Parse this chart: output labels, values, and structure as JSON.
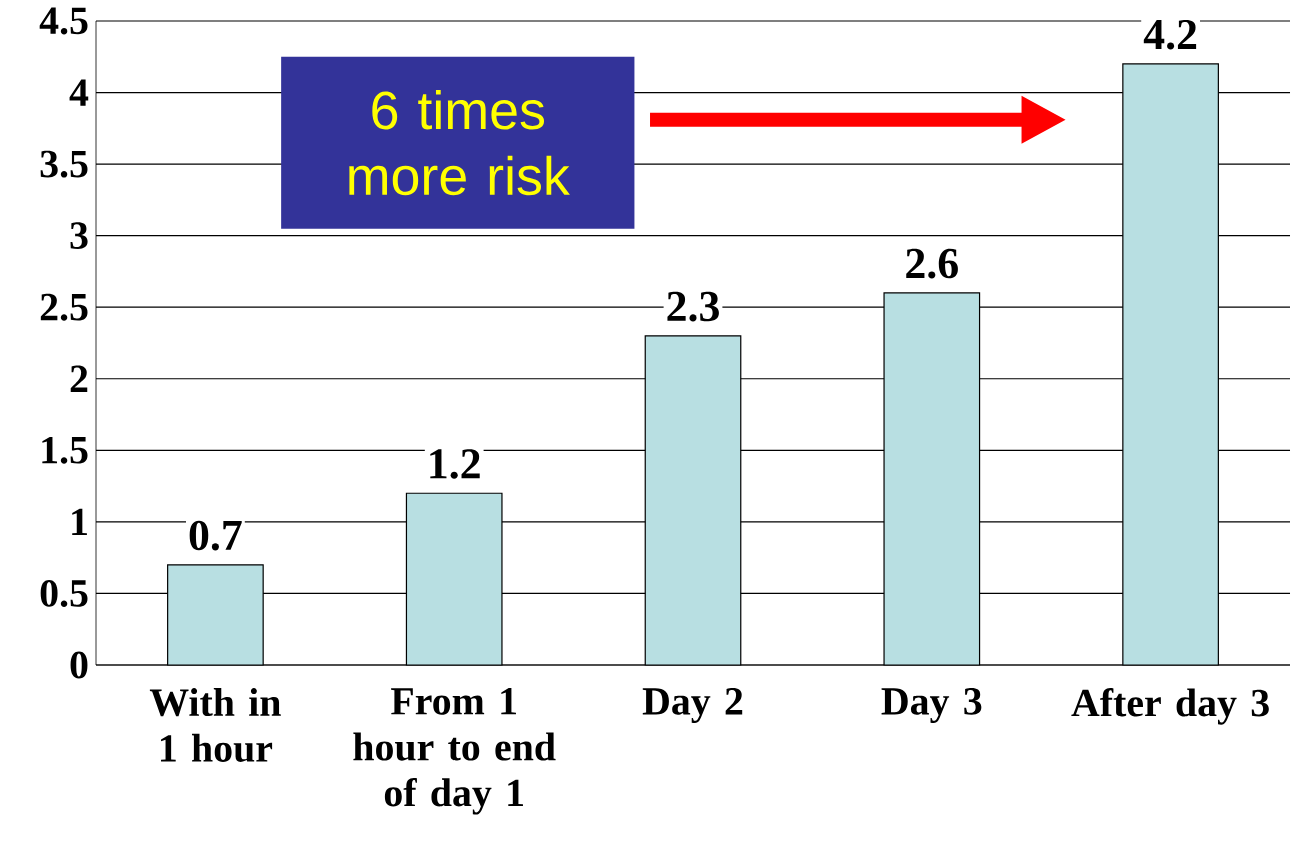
{
  "chart_data": {
    "type": "bar",
    "categories": [
      "With in 1 hour",
      "From 1 hour to end of day 1",
      "Day 2",
      "Day 3",
      "After day 3"
    ],
    "values": [
      0.7,
      1.2,
      2.3,
      2.6,
      4.2
    ],
    "color": "#b8dfe2",
    "ylim": [
      0,
      4.5
    ],
    "yticks": [
      0,
      0.5,
      1,
      1.5,
      2,
      2.5,
      3,
      3.5,
      4,
      4.5
    ],
    "grid": "y",
    "data_labels": true,
    "annotations": [
      "6 times more risk"
    ]
  }
}
